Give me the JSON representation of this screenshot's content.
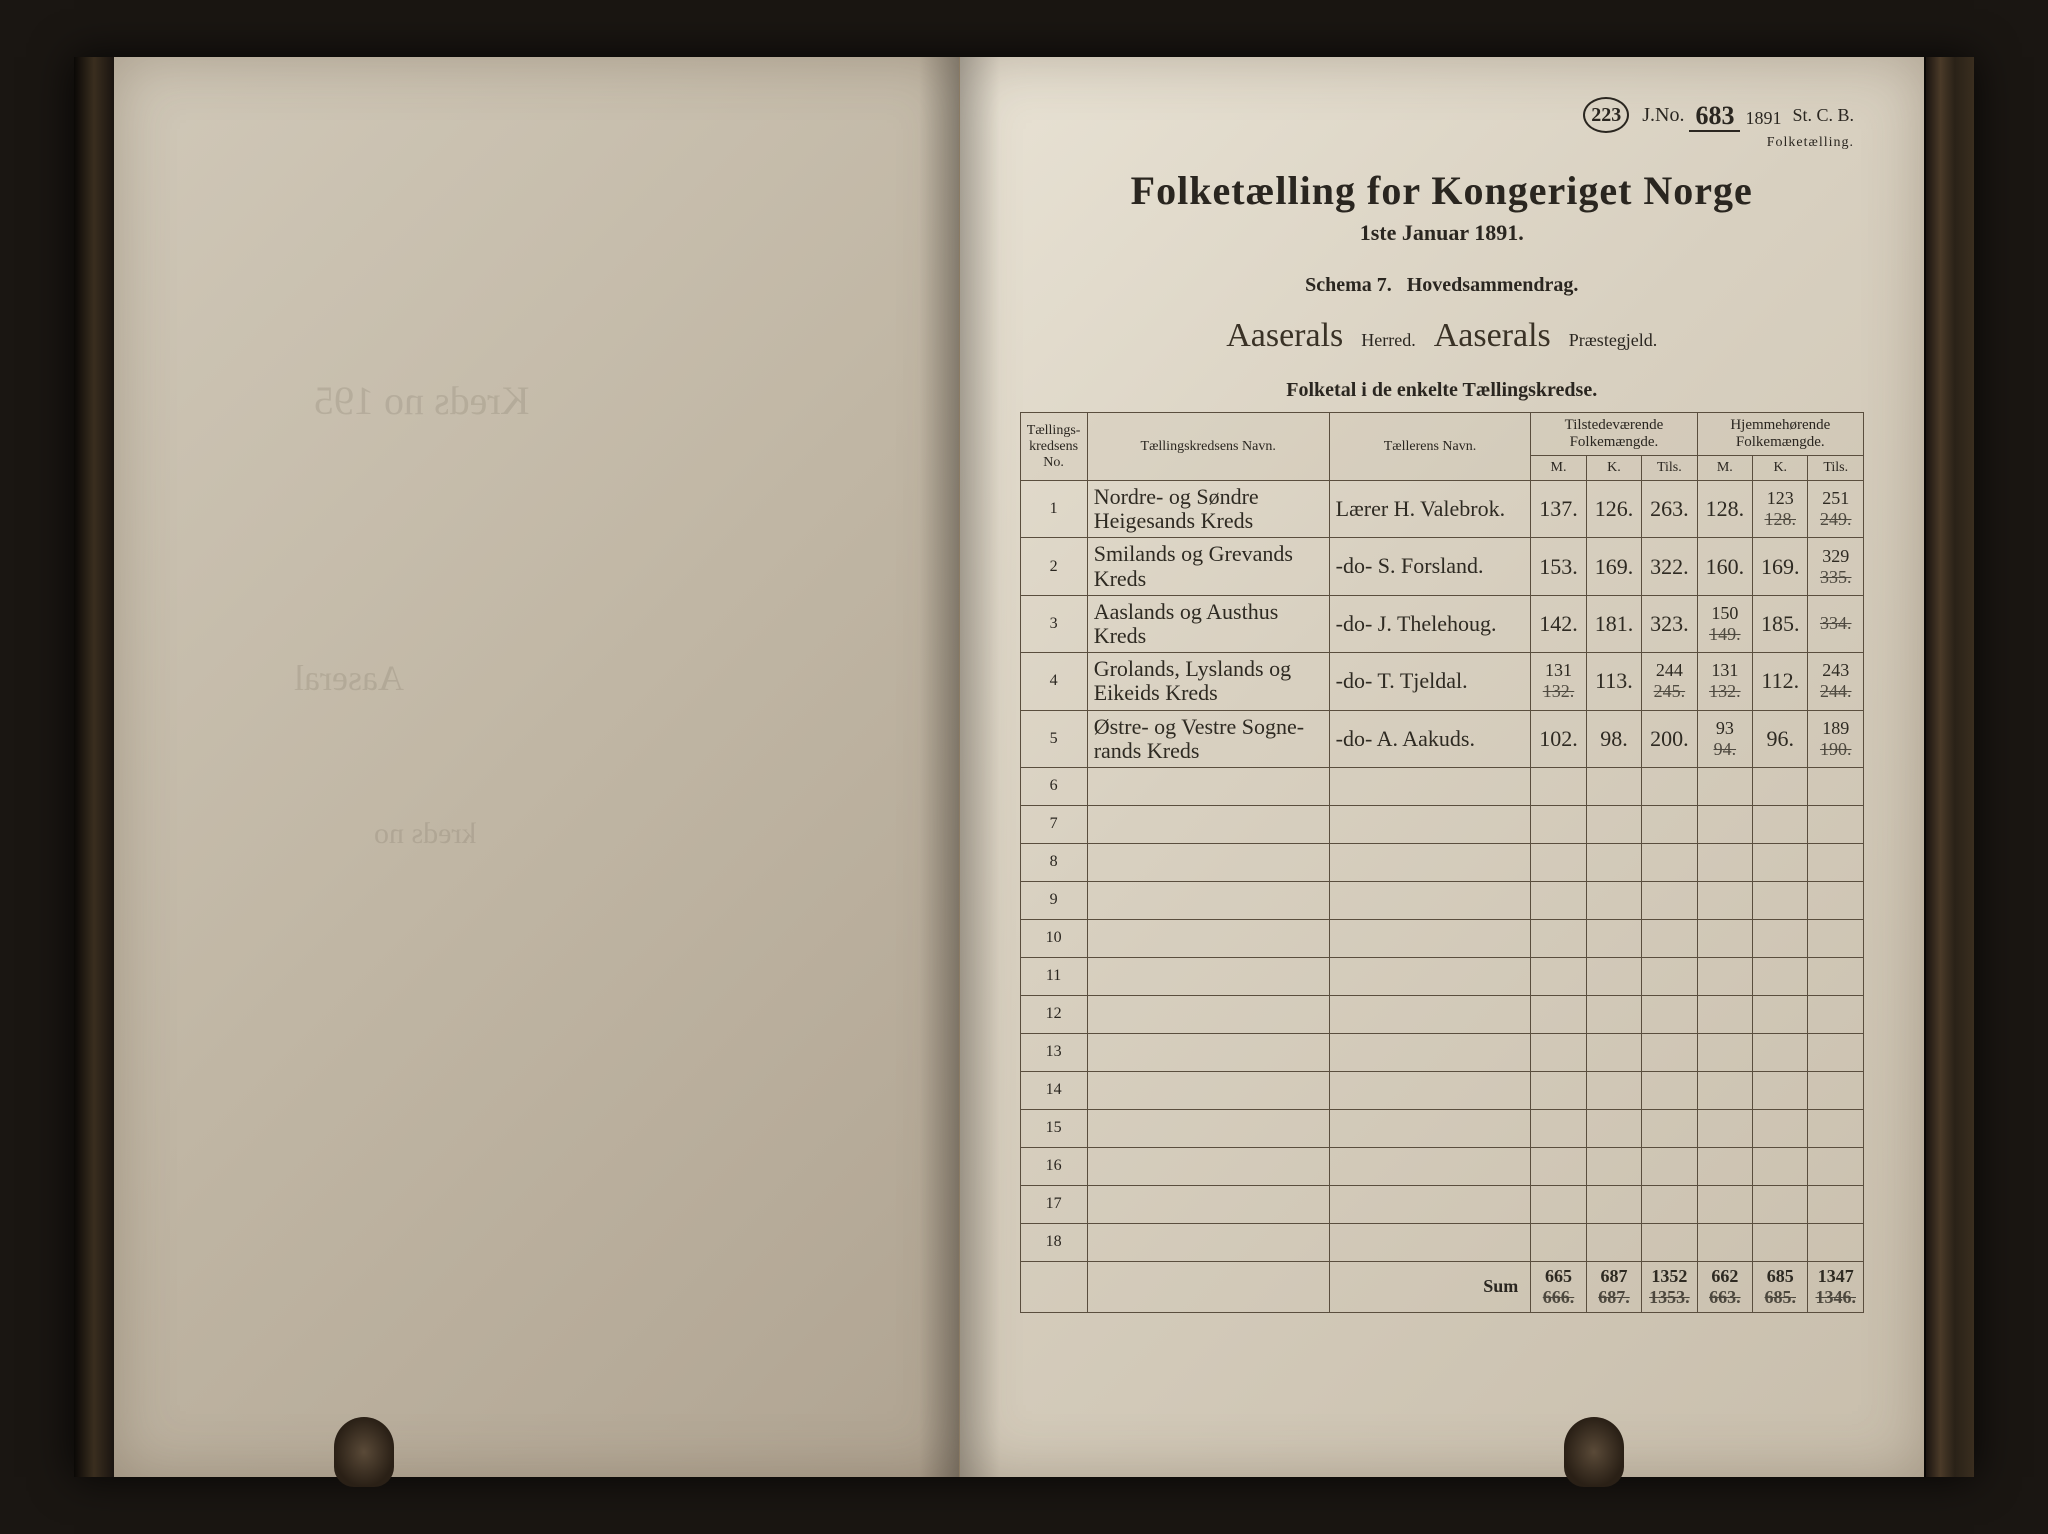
{
  "top_marks": {
    "circled": "223",
    "jno_prefix": "J.No.",
    "jno_num": "683",
    "jno_den": "1891",
    "stcb": "St. C. B.",
    "small": "Folketælling."
  },
  "titles": {
    "main": "Folketælling for Kongeriget Norge",
    "sub": "1ste Januar 1891.",
    "schema_a": "Schema 7.",
    "schema_b": "Hovedsammendrag."
  },
  "herred_line": {
    "herred_value": "Aaserals",
    "herred_label": "Herred.",
    "prast_value": "Aaserals",
    "prast_label": "Præstegjeld."
  },
  "section_title": "Folketal i de enkelte Tællingskredse.",
  "headers": {
    "col1": "Tællings-\nkredsens No.",
    "col2": "Tællingskredsens Navn.",
    "col3": "Tællerens Navn.",
    "grp1": "Tilstedeværende\nFolkemængde.",
    "grp2": "Hjemmehørende\nFolkemængde.",
    "m": "M.",
    "k": "K.",
    "tils": "Tils."
  },
  "rows": [
    {
      "no": "1",
      "name": "Nordre- og Søndre\nHeigesands Kreds",
      "teller": "Lærer H. Valebrok.",
      "t_m": "137.",
      "t_k": "126.",
      "t_t": "263.",
      "h_m": "128.",
      "h_k_corr": "123",
      "h_k_struck": "128.",
      "h_t_corr": "251",
      "h_t_struck": "249."
    },
    {
      "no": "2",
      "name": "Smilands og Grevands\nKreds",
      "teller": "-do- S. Forsland.",
      "t_m": "153.",
      "t_k": "169.",
      "t_t": "322.",
      "h_m": "160.",
      "h_k": "169.",
      "h_t_corr": "329",
      "h_t_struck": "335."
    },
    {
      "no": "3",
      "name": "Aaslands og Austhus\nKreds",
      "teller": "-do- J. Thelehoug.",
      "t_m": "142.",
      "t_k": "181.",
      "t_t": "323.",
      "h_m_corr": "150",
      "h_m_struck": "149.",
      "h_k": "185.",
      "h_t_struck": "334."
    },
    {
      "no": "4",
      "name": "Grolands, Lyslands og\nEikeids Kreds",
      "teller": "-do- T. Tjeldal.",
      "t_m_corr": "131",
      "t_m_struck": "132.",
      "t_k": "113.",
      "t_t_corr": "244",
      "t_t_struck": "245.",
      "h_m_corr": "131",
      "h_m_struck": "132.",
      "h_k": "112.",
      "h_t_corr": "243",
      "h_t_struck": "244."
    },
    {
      "no": "5",
      "name": "Østre- og Vestre Sogne-\nrands Kreds",
      "teller": "-do- A. Aakuds.",
      "t_m": "102.",
      "t_k": "98.",
      "t_t": "200.",
      "h_m_corr": "93",
      "h_m_struck": "94.",
      "h_k": "96.",
      "h_t_corr": "189",
      "h_t_struck": "190."
    }
  ],
  "empty_rows": [
    "6",
    "7",
    "8",
    "9",
    "10",
    "11",
    "12",
    "13",
    "14",
    "15",
    "16",
    "17",
    "18"
  ],
  "sum": {
    "label": "Sum",
    "t_m_corr": "665",
    "t_m_struck": "666.",
    "t_k_corr": "687",
    "t_k_struck": "687.",
    "t_t_corr": "1352",
    "t_t_struck": "1353.",
    "h_m_corr": "662",
    "h_m_struck": "663.",
    "h_k_corr": "685",
    "h_k_struck": "685.",
    "h_t_corr": "1347",
    "h_t_struck": "1346."
  }
}
